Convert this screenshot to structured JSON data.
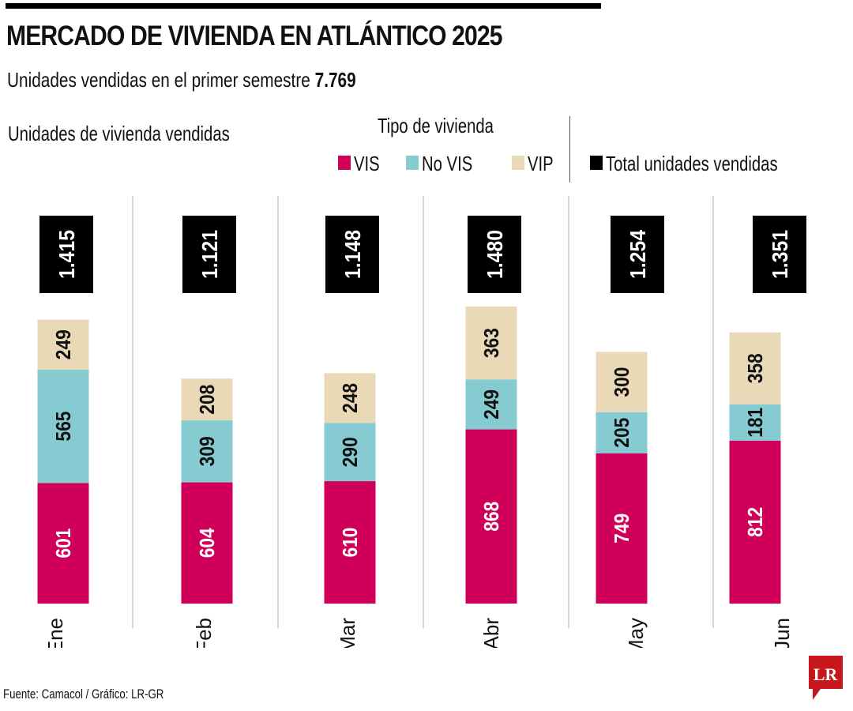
{
  "header": {
    "title": "MERCADO DE VIVIENDA EN ATLÁNTICO 2025",
    "subtitle_prefix": "Unidades vendidas en el primer semestre",
    "subtitle_value": "7.769"
  },
  "footer": {
    "source": "Fuente: Camacol / Gráfico: LR-GR",
    "logo_text": "LR"
  },
  "colors": {
    "VIS": "#d0005a",
    "No VIS": "#86cbd2",
    "VIP": "#e9d9b6",
    "Total": "#000000",
    "divider": "#bbbbbb",
    "logo": "#c8161d"
  },
  "chart_data": {
    "type": "bar",
    "stacked": true,
    "title": "MERCADO DE VIVIENDA EN ATLÁNTICO 2025",
    "subtitle": "Unidades vendidas en el primer semestre 7.769",
    "ylabel": "Unidades de vivienda vendidas",
    "xlabel": "",
    "legend_title": "Tipo de vivienda",
    "legend_position": "top-right",
    "legend": [
      "VIS",
      "No VIS",
      "VIP",
      "Total unidades vendidas"
    ],
    "categories": [
      "Ene",
      "Feb",
      "Mar",
      "Abr",
      "May",
      "Jun"
    ],
    "series": [
      {
        "name": "VIS",
        "values": [
          601,
          604,
          610,
          868,
          749,
          812
        ]
      },
      {
        "name": "No VIS",
        "values": [
          565,
          309,
          290,
          249,
          205,
          181
        ]
      },
      {
        "name": "VIP",
        "values": [
          249,
          208,
          248,
          363,
          300,
          358
        ]
      }
    ],
    "totals": [
      1415,
      1121,
      1148,
      1480,
      1254,
      1351
    ],
    "total_labels": [
      "1.415",
      "1.121",
      "1.148",
      "1.480",
      "1.254",
      "1.351"
    ],
    "grid": false,
    "ylim": [
      0,
      1480
    ]
  }
}
